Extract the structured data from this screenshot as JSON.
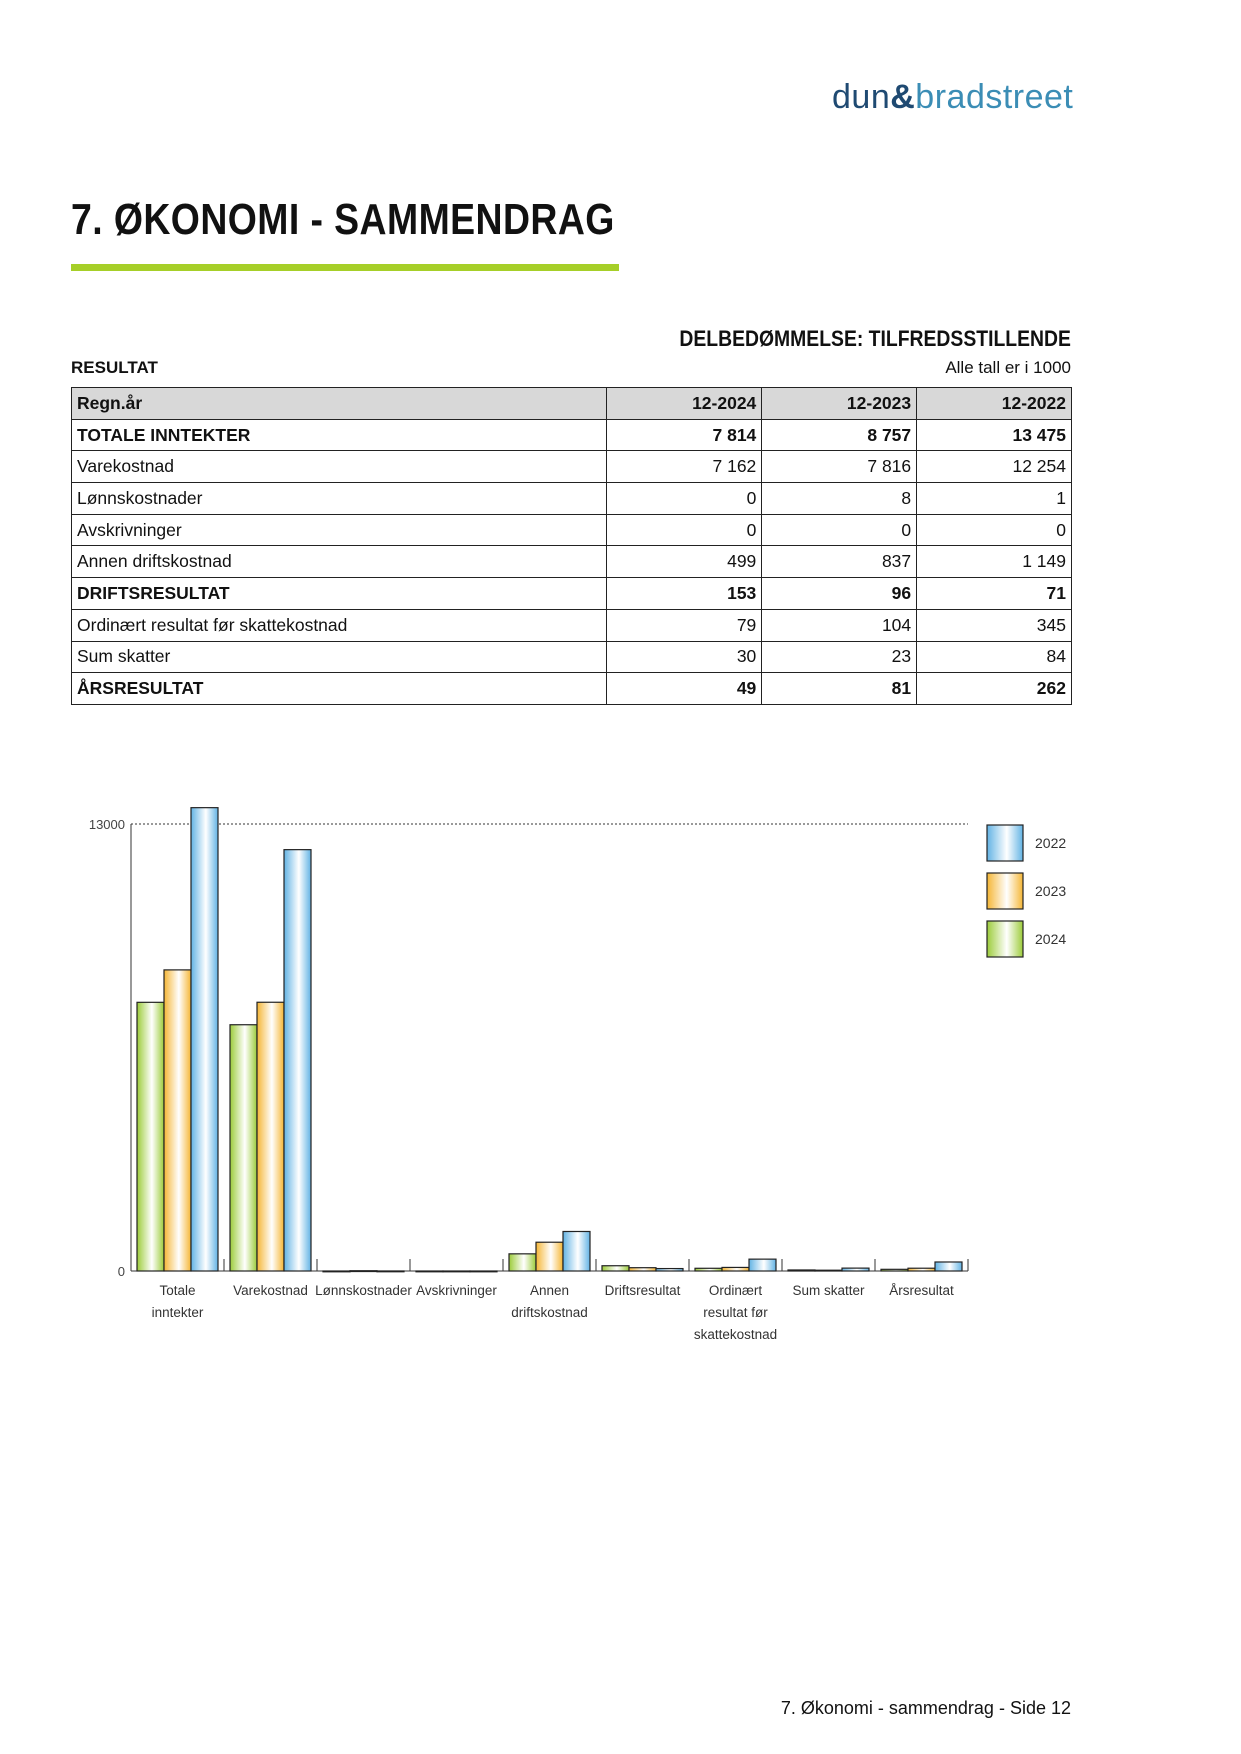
{
  "logo": {
    "part1": "dun",
    "amp": "&",
    "part2": "bradstreet"
  },
  "title": "7. ØKONOMI - SAMMENDRAG",
  "rating": "DELBEDØMMELSE: TILFREDSSTILLENDE",
  "section": "RESULTAT",
  "unit_note": "Alle tall er i 1000",
  "table": {
    "headers": [
      "Regn.år",
      "12-2024",
      "12-2023",
      "12-2022"
    ],
    "rows": [
      {
        "label": "TOTALE INNTEKTER",
        "values": [
          "7 814",
          "8 757",
          "13 475"
        ],
        "bold": true
      },
      {
        "label": "Varekostnad",
        "values": [
          "7 162",
          "7 816",
          "12 254"
        ],
        "bold": false
      },
      {
        "label": "Lønnskostnader",
        "values": [
          "0",
          "8",
          "1"
        ],
        "bold": false
      },
      {
        "label": "Avskrivninger",
        "values": [
          "0",
          "0",
          "0"
        ],
        "bold": false
      },
      {
        "label": "Annen driftskostnad",
        "values": [
          "499",
          "837",
          "1 149"
        ],
        "bold": false
      },
      {
        "label": "DRIFTSRESULTAT",
        "values": [
          "153",
          "96",
          "71"
        ],
        "bold": true
      },
      {
        "label": "Ordinært resultat før skattekostnad",
        "values": [
          "79",
          "104",
          "345"
        ],
        "bold": false
      },
      {
        "label": "Sum skatter",
        "values": [
          "30",
          "23",
          "84"
        ],
        "bold": false
      },
      {
        "label": "ÅRSRESULTAT",
        "values": [
          "49",
          "81",
          "262"
        ],
        "bold": true
      }
    ]
  },
  "chart_data": {
    "type": "bar",
    "categories": [
      [
        "Totale",
        "inntekter"
      ],
      [
        "Varekostnad"
      ],
      [
        "Lønnskostnader"
      ],
      [
        "Avskrivninger"
      ],
      [
        "Annen",
        "driftskostnad"
      ],
      [
        "Driftsresultat"
      ],
      [
        "Ordinært",
        "resultat før",
        "skattekostnad"
      ],
      [
        "Sum skatter"
      ],
      [
        "Årsresultat"
      ]
    ],
    "series": [
      {
        "name": "2024",
        "color": "#9ccc3a",
        "values": [
          7814,
          7162,
          0,
          0,
          499,
          153,
          79,
          30,
          49
        ]
      },
      {
        "name": "2023",
        "color": "#f5b635",
        "values": [
          8757,
          7816,
          8,
          0,
          837,
          96,
          104,
          23,
          81
        ]
      },
      {
        "name": "2022",
        "color": "#62b3e4",
        "values": [
          13475,
          12254,
          1,
          0,
          1149,
          71,
          345,
          84,
          262
        ]
      }
    ],
    "yticks": [
      "0",
      "13000"
    ],
    "ylim": [
      0,
      13000
    ],
    "gridline": "dotted at 13000",
    "legend": "right"
  },
  "footer": "7. Økonomi - sammendrag - Side 12"
}
